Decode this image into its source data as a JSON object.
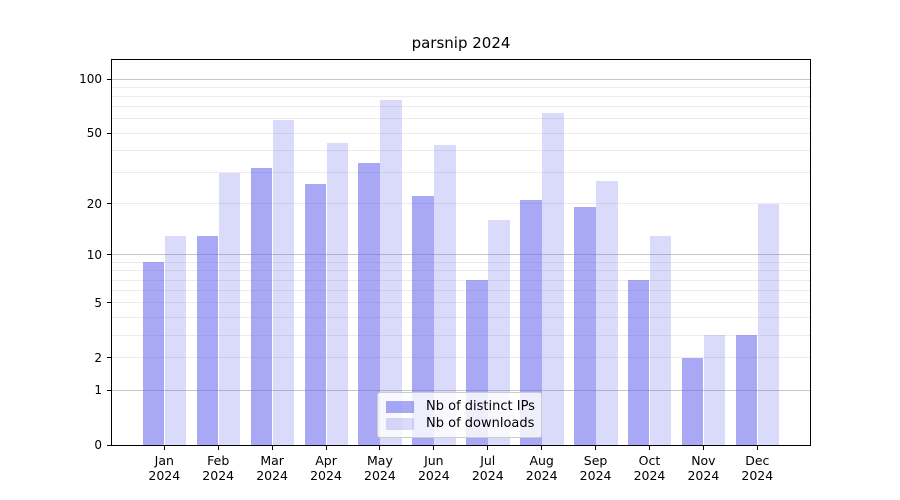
{
  "chart_data": {
    "type": "bar",
    "title": "parsnip 2024",
    "categories": [
      "Jan",
      "Feb",
      "Mar",
      "Apr",
      "May",
      "Jun",
      "Jul",
      "Aug",
      "Sep",
      "Oct",
      "Nov",
      "Dec"
    ],
    "x_tick_labels": [
      [
        "Jan",
        "2024"
      ],
      [
        "Feb",
        "2024"
      ],
      [
        "Mar",
        "2024"
      ],
      [
        "Apr",
        "2024"
      ],
      [
        "May",
        "2024"
      ],
      [
        "Jun",
        "2024"
      ],
      [
        "Jul",
        "2024"
      ],
      [
        "Aug",
        "2024"
      ],
      [
        "Sep",
        "2024"
      ],
      [
        "Oct",
        "2024"
      ],
      [
        "Nov",
        "2024"
      ],
      [
        "Dec",
        "2024"
      ]
    ],
    "series": [
      {
        "name": "Nb of distinct IPs",
        "color": "rgba(102,102,238,0.57)",
        "values": [
          9,
          13,
          32,
          26,
          34,
          22,
          7,
          21,
          19,
          7,
          2,
          3
        ]
      },
      {
        "name": "Nb of downloads",
        "color": "rgba(102,102,238,0.24)",
        "values": [
          13,
          30,
          59,
          44,
          77,
          43,
          16,
          65,
          27,
          13,
          3,
          20
        ]
      }
    ],
    "xlabel": "",
    "ylabel": "",
    "y_axis": {
      "scale": "log1p",
      "ylim": [
        0,
        128
      ],
      "tick_values": [
        0,
        1,
        2,
        5,
        10,
        20,
        50,
        100
      ],
      "tick_labels": [
        "0",
        "1",
        "2",
        "5",
        "10",
        "20",
        "50",
        "100"
      ],
      "major_grid_values": [
        1,
        10,
        100
      ],
      "minor_grid_values": [
        2,
        3,
        4,
        5,
        6,
        7,
        8,
        9,
        20,
        30,
        40,
        50,
        60,
        70,
        80,
        90
      ]
    },
    "grid": true,
    "legend": {
      "position": "lower-center-inside",
      "entries": [
        "Nb of distinct IPs",
        "Nb of downloads"
      ]
    },
    "colors": {
      "major_grid": "#c6c6c6",
      "minor_grid": "#ebebeb",
      "spine": "#000000",
      "text": "#000000",
      "legend_border": "#cccccc",
      "legend_background": "rgba(255,255,255,0.8)"
    }
  }
}
